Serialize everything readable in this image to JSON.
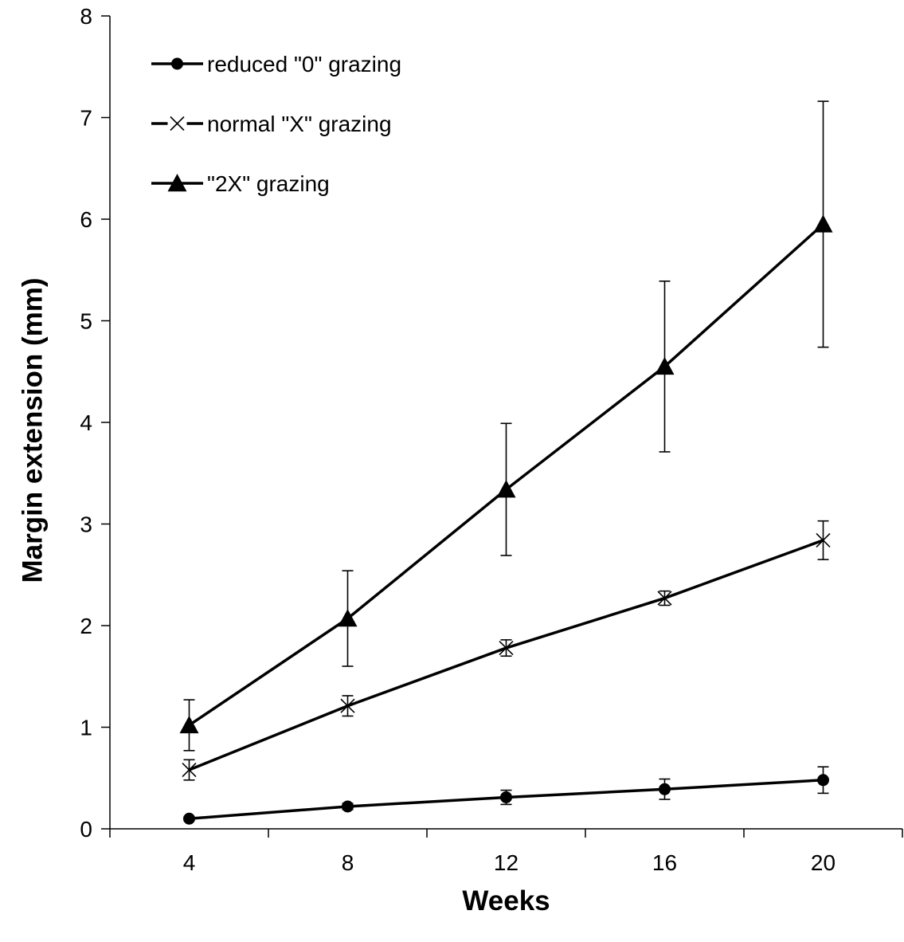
{
  "chart_data": {
    "type": "line",
    "title": "",
    "xlabel": "Weeks",
    "ylabel": "Margin extension (mm)",
    "categories": [
      "4",
      "8",
      "12",
      "16",
      "20"
    ],
    "ylim": [
      0,
      8
    ],
    "yticks": [
      "0",
      "1",
      "2",
      "3",
      "4",
      "5",
      "6",
      "7",
      "8"
    ],
    "grid": false,
    "legend_position": "top-left",
    "series": [
      {
        "name": "reduced \"0\" grazing",
        "marker": "circle",
        "values": [
          0.1,
          0.22,
          0.31,
          0.39,
          0.48
        ],
        "errors": [
          0.02,
          0.03,
          0.07,
          0.1,
          0.13
        ]
      },
      {
        "name": "normal \"X\" grazing",
        "marker": "x",
        "values": [
          0.58,
          1.21,
          1.78,
          2.27,
          2.84
        ],
        "errors": [
          0.1,
          0.1,
          0.08,
          0.07,
          0.19
        ]
      },
      {
        "name": "\"2X\" grazing",
        "marker": "triangle",
        "values": [
          1.02,
          2.07,
          3.34,
          4.55,
          5.95
        ],
        "errors": [
          0.25,
          0.47,
          0.65,
          0.84,
          1.21
        ]
      }
    ]
  }
}
